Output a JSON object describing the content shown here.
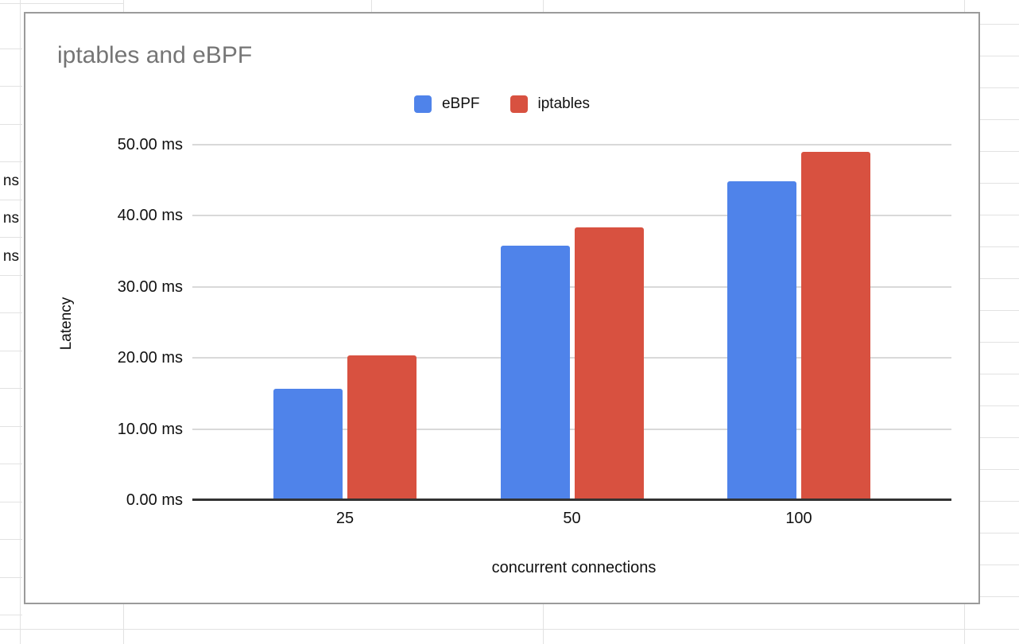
{
  "background": {
    "partial_cell_texts": [
      "ns",
      "ns",
      "ns"
    ]
  },
  "chart": {
    "title": "iptables and eBPF",
    "legend": [
      {
        "label": "eBPF",
        "color": "#4f83ea"
      },
      {
        "label": "iptables",
        "color": "#d85140"
      }
    ],
    "y_axis_title": "Latency",
    "x_axis_title": "concurrent connections",
    "y_tick_labels": [
      "0.00 ms",
      "10.00 ms",
      "20.00 ms",
      "30.00 ms",
      "40.00 ms",
      "50.00 ms"
    ]
  },
  "chart_data": {
    "type": "bar",
    "title": "iptables and eBPF",
    "xlabel": "concurrent connections",
    "ylabel": "Latency",
    "categories": [
      "25",
      "50",
      "100"
    ],
    "series": [
      {
        "name": "eBPF",
        "color": "#4f83ea",
        "values": [
          15.5,
          35.7,
          44.8
        ]
      },
      {
        "name": "iptables",
        "color": "#d85140",
        "values": [
          20.3,
          38.3,
          48.9
        ]
      }
    ],
    "ylim": [
      0,
      50
    ],
    "ytick_step": 10,
    "ytick_unit": "ms",
    "grid": true,
    "legend_position": "top"
  }
}
